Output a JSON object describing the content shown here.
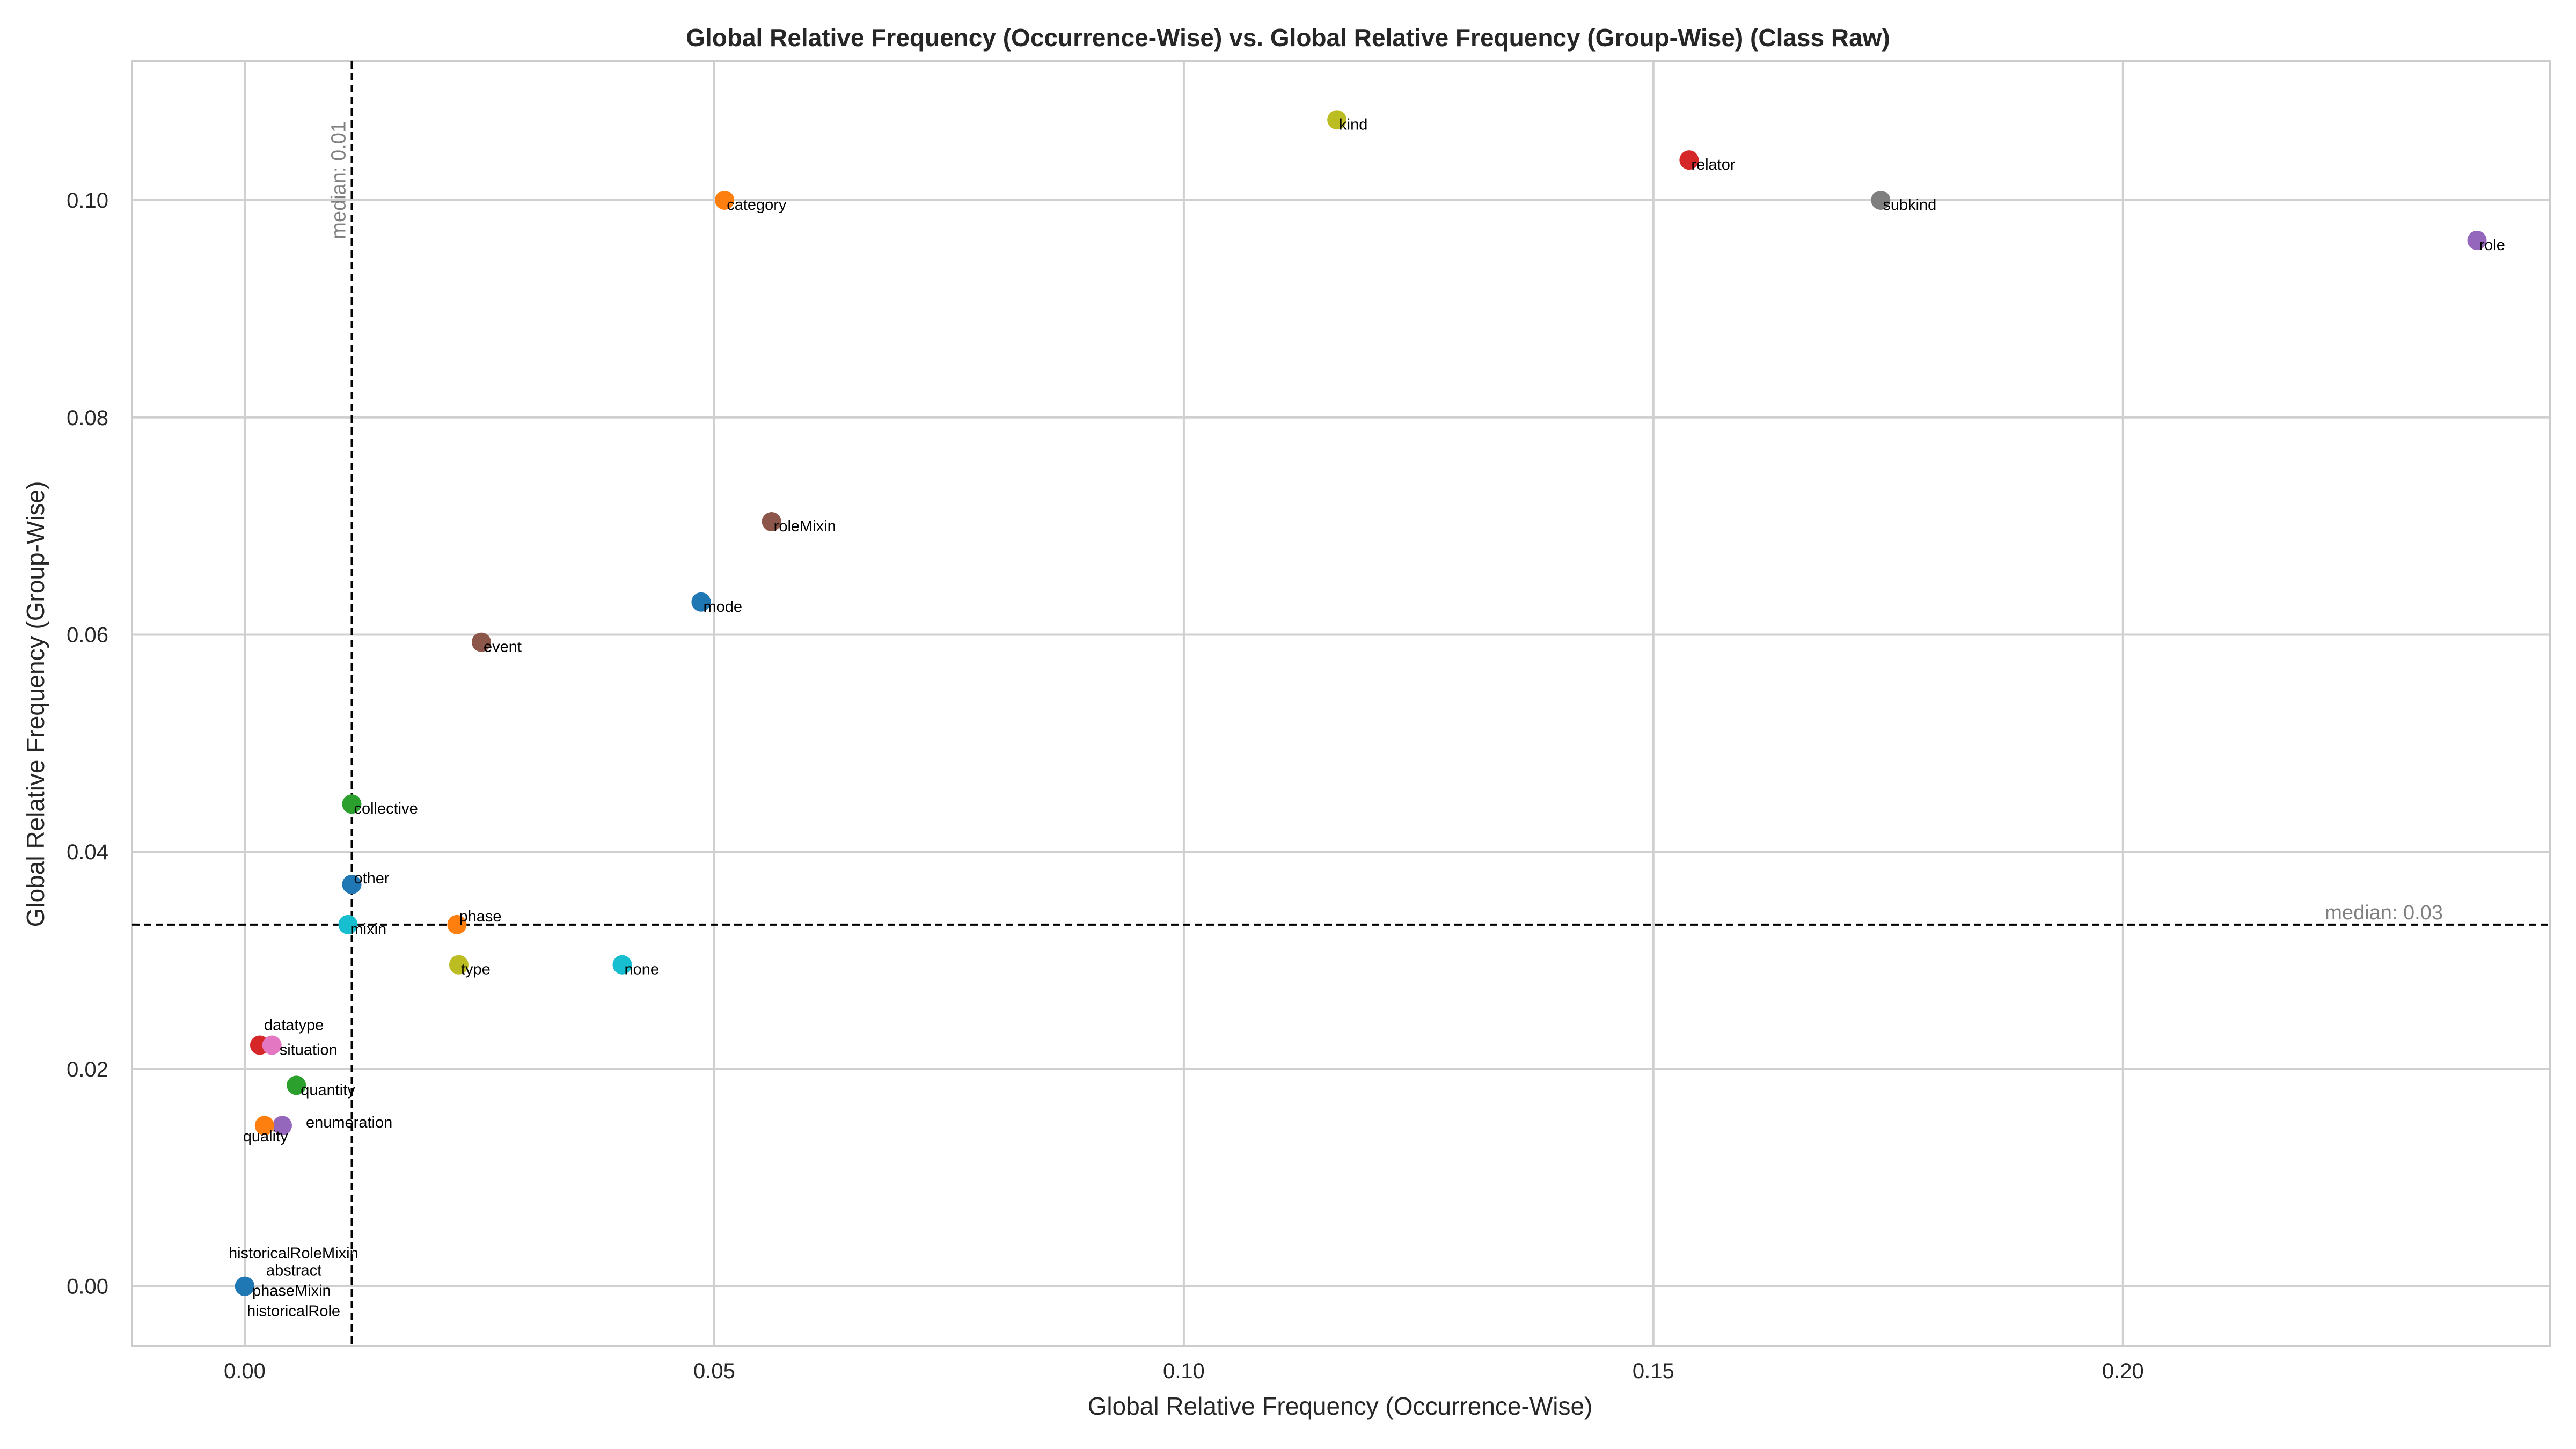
{
  "chart_data": {
    "type": "scatter",
    "title": "Global Relative Frequency (Occurrence-Wise) vs. Global Relative Frequency (Group-Wise) (Class Raw)",
    "xlabel": "Global Relative Frequency (Occurrence-Wise)",
    "ylabel": "Global Relative Frequency (Group-Wise)",
    "xlim": [
      -0.012,
      0.2455
    ],
    "ylim": [
      -0.0055,
      0.1128
    ],
    "xticks": [
      0.0,
      0.05,
      0.1,
      0.15,
      0.2
    ],
    "xtick_labels": [
      "0.00",
      "0.05",
      "0.10",
      "0.15",
      "0.20"
    ],
    "yticks": [
      0.0,
      0.02,
      0.04,
      0.06,
      0.08,
      0.1
    ],
    "ytick_labels": [
      "0.00",
      "0.02",
      "0.04",
      "0.06",
      "0.08",
      "0.10"
    ],
    "grid": true,
    "median_x": {
      "value": 0.0114,
      "label": "median: 0.01"
    },
    "median_y": {
      "value": 0.0333,
      "label": "median: 0.03"
    },
    "points": [
      {
        "label": "kind",
        "x": 0.1163,
        "y": 0.1074,
        "color": "#bcbd22"
      },
      {
        "label": "relator",
        "x": 0.1538,
        "y": 0.1037,
        "color": "#d62728"
      },
      {
        "label": "category",
        "x": 0.0511,
        "y": 0.1,
        "color": "#ff7f0e"
      },
      {
        "label": "subkind",
        "x": 0.1742,
        "y": 0.1,
        "color": "#7f7f7f"
      },
      {
        "label": "role",
        "x": 0.2377,
        "y": 0.0963,
        "color": "#9467bd"
      },
      {
        "label": "roleMixin",
        "x": 0.0561,
        "y": 0.0704,
        "color": "#8c564b"
      },
      {
        "label": "mode",
        "x": 0.0486,
        "y": 0.063,
        "color": "#1f77b4"
      },
      {
        "label": "event",
        "x": 0.0252,
        "y": 0.0593,
        "color": "#8c564b"
      },
      {
        "label": "collective",
        "x": 0.0114,
        "y": 0.0444,
        "color": "#2ca02c"
      },
      {
        "label": "other",
        "x": 0.0114,
        "y": 0.037,
        "color": "#1f77b4"
      },
      {
        "label": "phase",
        "x": 0.0226,
        "y": 0.0333,
        "color": "#ff7f0e"
      },
      {
        "label": "mixin",
        "x": 0.011,
        "y": 0.0333,
        "color": "#17becf"
      },
      {
        "label": "type",
        "x": 0.0228,
        "y": 0.0296,
        "color": "#bcbd22"
      },
      {
        "label": "none",
        "x": 0.0402,
        "y": 0.0296,
        "color": "#17becf"
      },
      {
        "label": "datatype",
        "x": 0.0016,
        "y": 0.0222,
        "color": "#d62728"
      },
      {
        "label": "situation",
        "x": 0.0029,
        "y": 0.0222,
        "color": "#e377c2"
      },
      {
        "label": "quantity",
        "x": 0.0055,
        "y": 0.0185,
        "color": "#2ca02c"
      },
      {
        "label": "enumeration",
        "x": 0.004,
        "y": 0.0148,
        "color": "#9467bd"
      },
      {
        "label": "quality",
        "x": 0.0021,
        "y": 0.0148,
        "color": "#ff7f0e"
      },
      {
        "label": "historicalRoleMixin",
        "x": 0.0,
        "y": 0.0,
        "color": "#1f77b4"
      },
      {
        "label": "abstract",
        "x": 0.0,
        "y": 0.0,
        "color": "#1f77b4"
      },
      {
        "label": "phaseMixin",
        "x": 0.0,
        "y": 0.0,
        "color": "#1f77b4"
      },
      {
        "label": "historicalRole",
        "x": 0.0,
        "y": 0.0,
        "color": "#1f77b4"
      }
    ]
  }
}
